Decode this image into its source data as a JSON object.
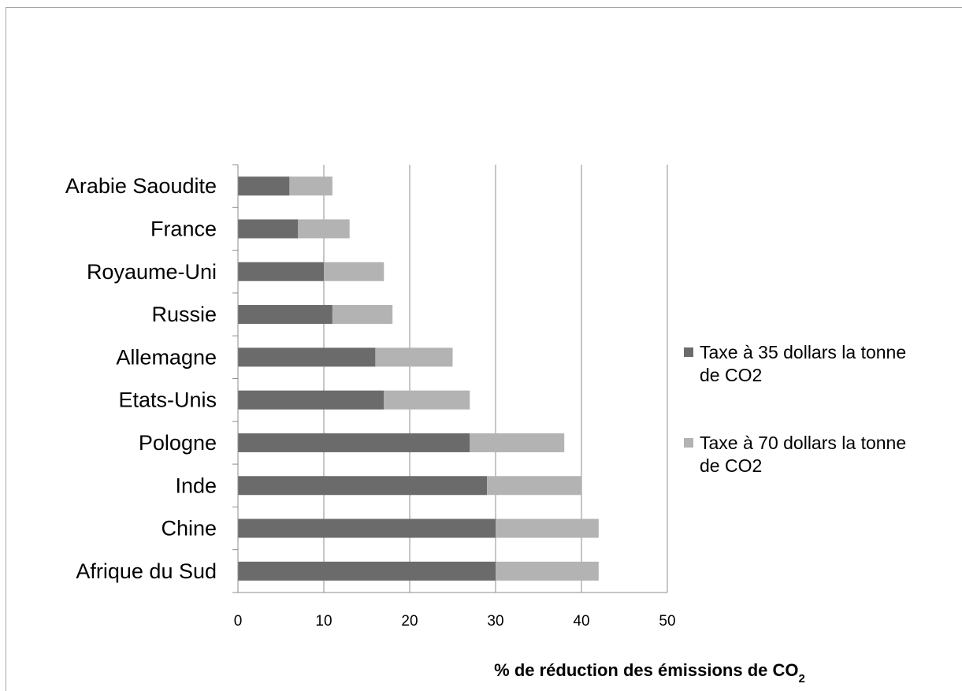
{
  "chart_data": {
    "type": "bar",
    "orientation": "horizontal",
    "stacked": true,
    "categories": [
      "Arabie Saoudite",
      "France",
      "Royaume-Uni",
      "Russie",
      "Allemagne",
      "Etats-Unis",
      "Pologne",
      "Inde",
      "Chine",
      "Afrique du Sud"
    ],
    "series": [
      {
        "name": "Taxe à 35 dollars la tonne de CO2",
        "legend_lines": [
          "Taxe à 35 dollars la tonne",
          "de CO2"
        ],
        "color": "#6b6b6b",
        "values": [
          6,
          7,
          10,
          11,
          16,
          17,
          27,
          29,
          30,
          30
        ]
      },
      {
        "name": "Taxe à 70 dollars la tonne de CO2",
        "legend_lines": [
          "Taxe à 70 dollars la tonne",
          "de CO2"
        ],
        "color": "#b3b3b3",
        "values": [
          5,
          6,
          7,
          7,
          9,
          10,
          11,
          11,
          12,
          12
        ]
      }
    ],
    "xlim": [
      0,
      50
    ],
    "xticks": [
      "0",
      "10",
      "20",
      "30",
      "40",
      "50"
    ],
    "xlabel": "% de réduction des émissions de CO",
    "xlabel_subscript": "2",
    "grid": true,
    "legend_position": "right"
  }
}
